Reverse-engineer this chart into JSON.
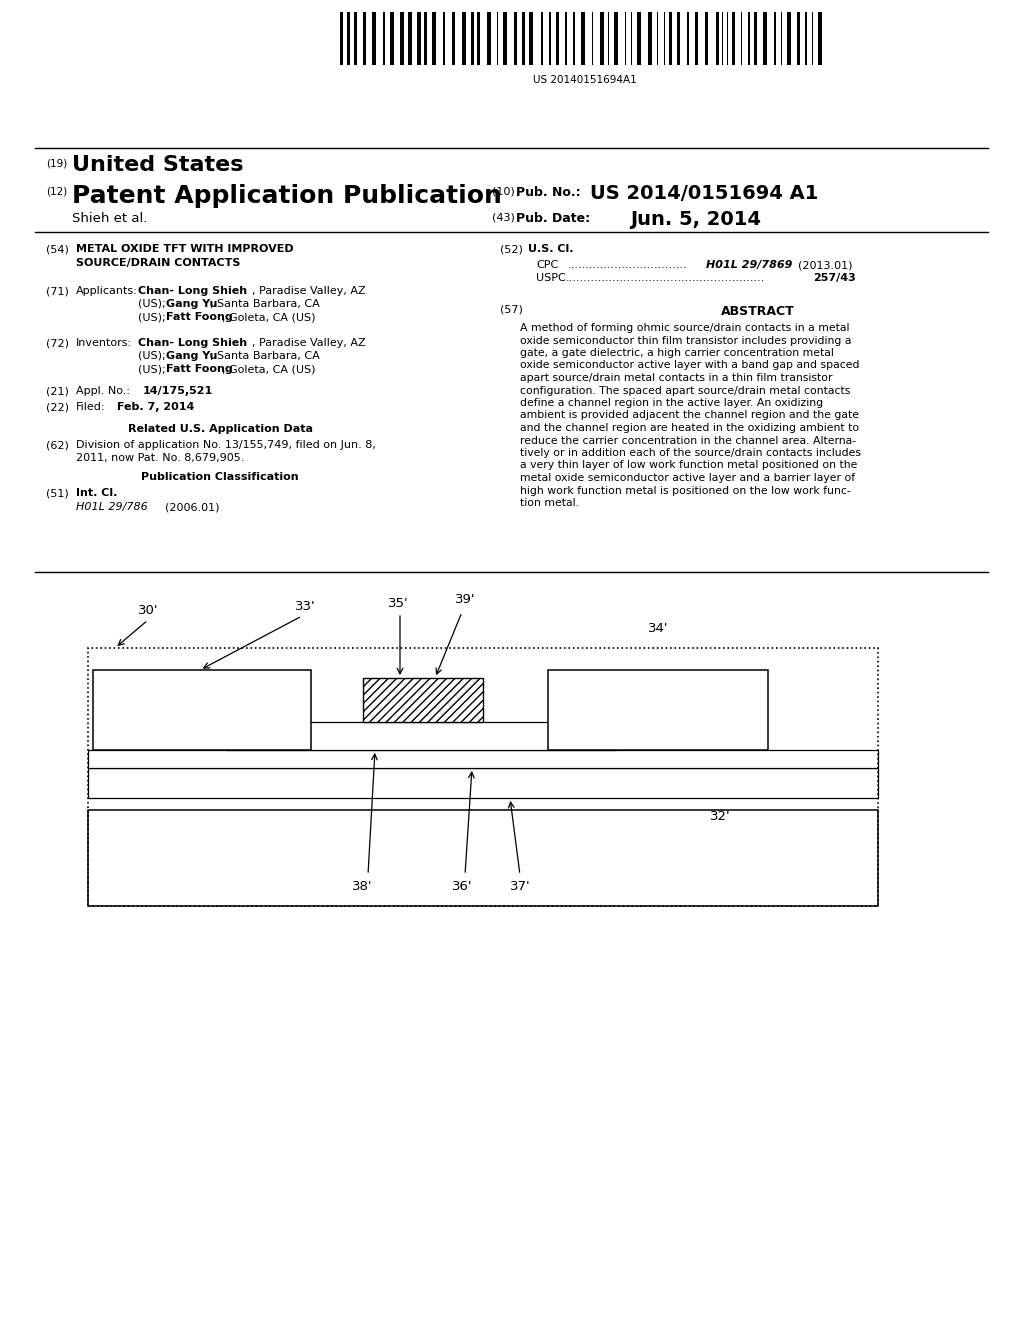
{
  "background_color": "#ffffff",
  "barcode_text": "US 20140151694A1",
  "abstract_text_lines": [
    "A method of forming ohmic source/drain contacts in a metal",
    "oxide semiconductor thin film transistor includes providing a",
    "gate, a gate dielectric, a high carrier concentration metal",
    "oxide semiconductor active layer with a band gap and spaced",
    "apart source/drain metal contacts in a thin film transistor",
    "configuration. The spaced apart source/drain metal contacts",
    "define a channel region in the active layer. An oxidizing",
    "ambient is provided adjacent the channel region and the gate",
    "and the channel region are heated in the oxidizing ambient to",
    "reduce the carrier concentration in the channel area. Alterna-",
    "tively or in addition each of the source/drain contacts includes",
    "a very thin layer of low work function metal positioned on the",
    "metal oxide semiconductor active layer and a barrier layer of",
    "high work function metal is positioned on the low work func-",
    "tion metal."
  ]
}
